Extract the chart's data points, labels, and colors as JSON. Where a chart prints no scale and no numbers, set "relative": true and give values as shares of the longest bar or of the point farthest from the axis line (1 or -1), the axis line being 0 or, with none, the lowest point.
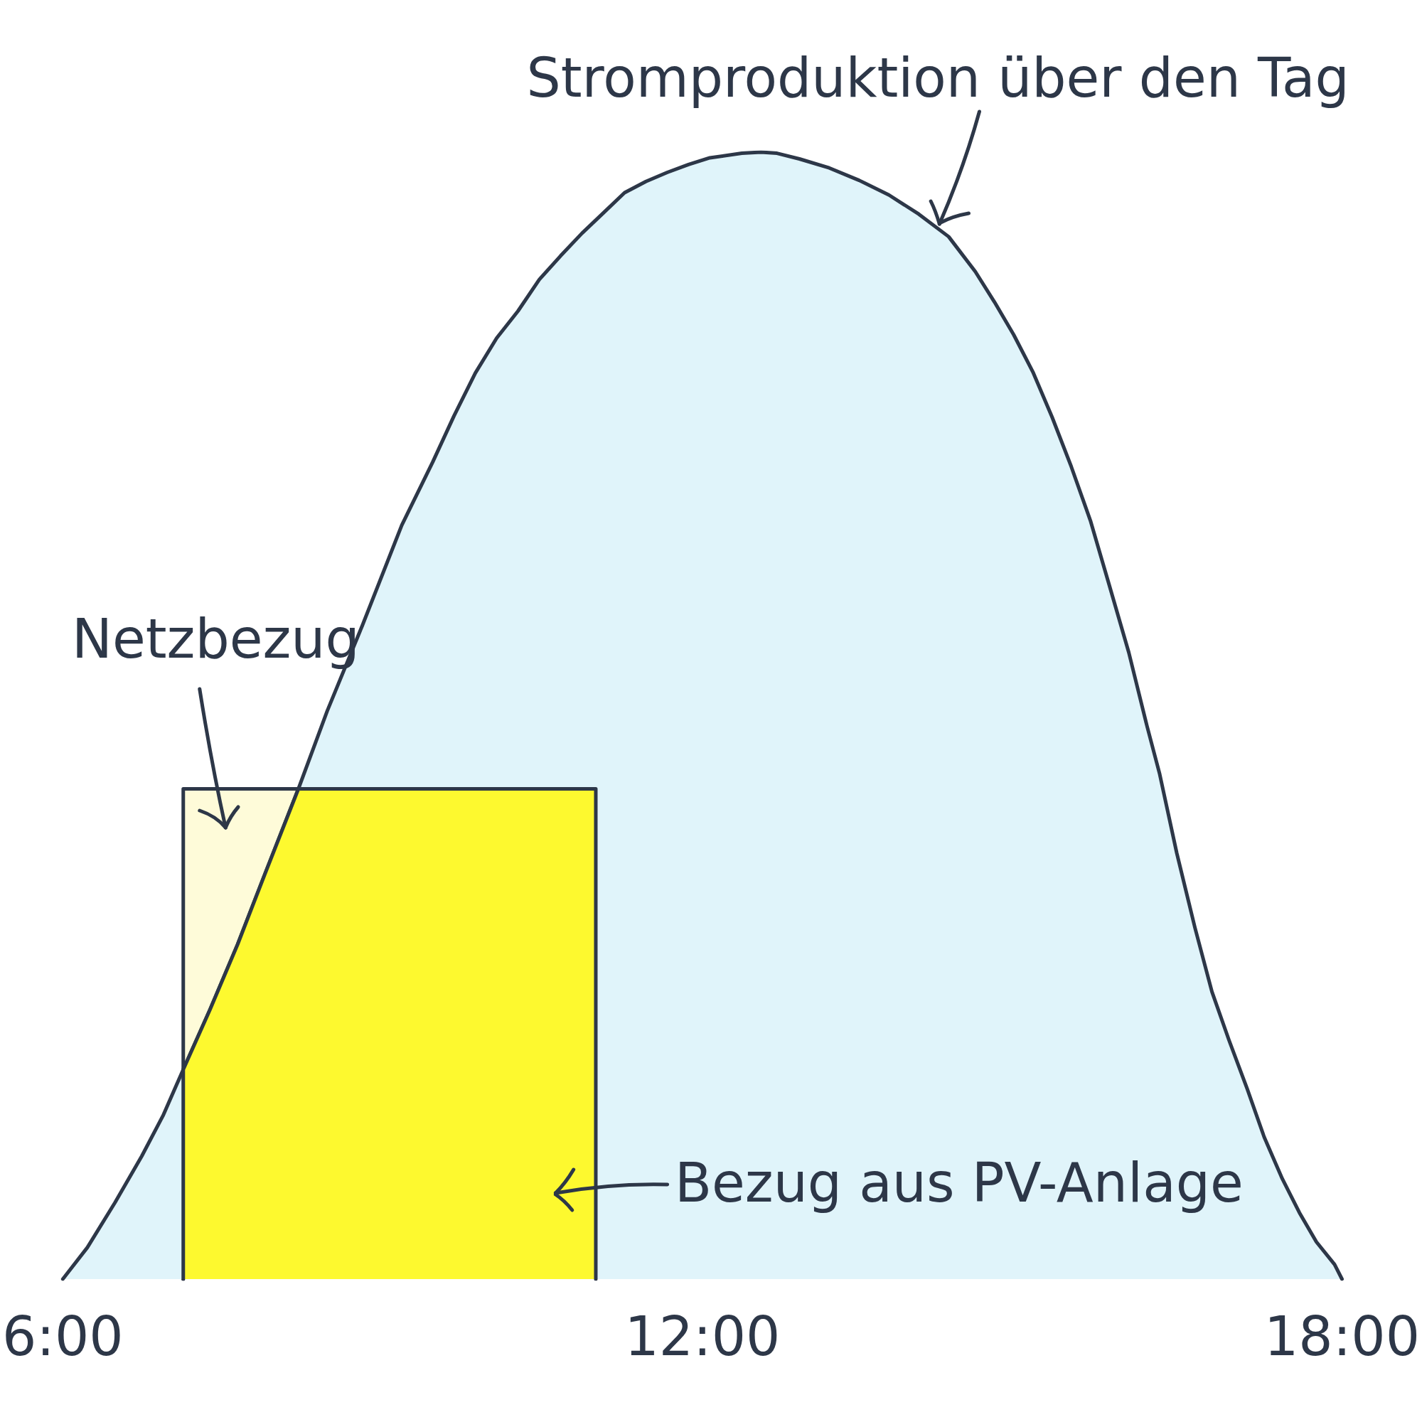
{
  "chart_data": {
    "type": "area",
    "relative": true,
    "xlim": [
      6,
      18
    ],
    "xticks": [
      {
        "value": 6,
        "label": "6:00"
      },
      {
        "value": 12,
        "label": "12:00"
      },
      {
        "value": 18,
        "label": "18:00"
      }
    ],
    "series": [
      {
        "name": "Netzbezug",
        "color": "#fefbd9",
        "x": [
          7.13,
          7.13,
          8.21
        ],
        "values": [
          0,
          0.435,
          0.435
        ]
      },
      {
        "name": "Stromproduktion über den Tag",
        "color": "#e0f4fa",
        "x": [
          6,
          6.23,
          6.49,
          6.74,
          6.94,
          7.13,
          7.38,
          7.64,
          7.89,
          8.21,
          8.48,
          8.81,
          9.18,
          9.47,
          9.67,
          9.87,
          10.07,
          10.27,
          10.47,
          10.67,
          10.87,
          11.07,
          11.27,
          11.47,
          11.67,
          11.87,
          12.07,
          12.37,
          12.55,
          12.7,
          12.91,
          13.19,
          13.47,
          13.75,
          14.03,
          14.31,
          14.56,
          14.74,
          14.92,
          15.1,
          15.28,
          15.46,
          15.64,
          15.81,
          16,
          16.17,
          16.29,
          16.45,
          16.62,
          16.78,
          16.94,
          17.11,
          17.27,
          17.44,
          17.6,
          17.76,
          17.93,
          18
        ],
        "values": [
          0,
          0.028,
          0.068,
          0.109,
          0.145,
          0.186,
          0.239,
          0.297,
          0.358,
          0.435,
          0.504,
          0.58,
          0.669,
          0.725,
          0.766,
          0.804,
          0.835,
          0.859,
          0.887,
          0.908,
          0.928,
          0.946,
          0.964,
          0.974,
          0.982,
          0.989,
          0.995,
          0.999,
          1,
          0.999,
          0.994,
          0.986,
          0.975,
          0.962,
          0.945,
          0.925,
          0.894,
          0.867,
          0.838,
          0.805,
          0.765,
          0.721,
          0.673,
          0.618,
          0.556,
          0.491,
          0.448,
          0.378,
          0.312,
          0.255,
          0.212,
          0.169,
          0.126,
          0.089,
          0.059,
          0.033,
          0.013,
          0
        ]
      },
      {
        "name": "Bezug aus PV-Anlage",
        "color": "#fdf92f",
        "x": [
          7.13,
          7.13,
          7.38,
          7.64,
          7.89,
          8.21,
          11,
          11
        ],
        "values": [
          0,
          0.186,
          0.239,
          0.297,
          0.358,
          0.435,
          0.435,
          0
        ]
      }
    ]
  }
}
